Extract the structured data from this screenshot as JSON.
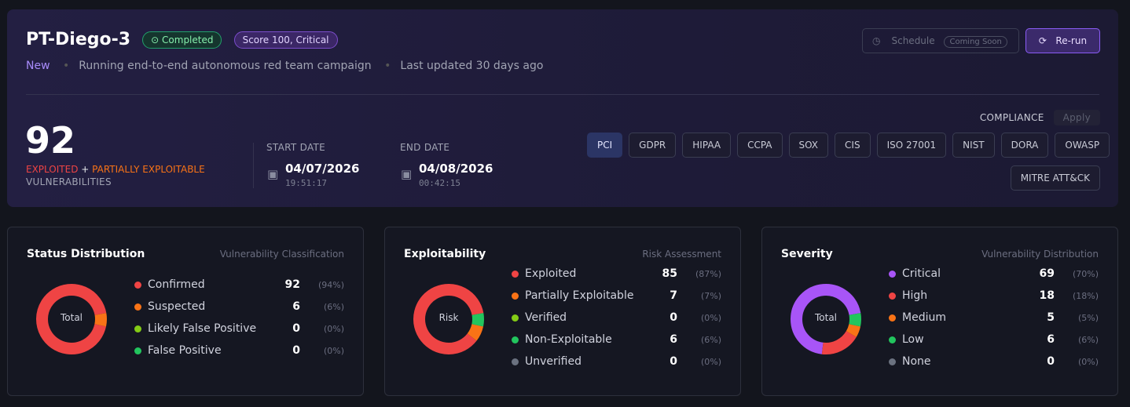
{
  "header": {
    "title": "PT-Diego-3",
    "status": "Completed",
    "score": "Score 100, Critical",
    "tag": "New",
    "description": "Running end-to-end autonomous red team campaign",
    "updated": "Last updated 30 days ago",
    "schedule": "Schedule",
    "schedule_badge": "Coming Soon",
    "rerun": "Re-run"
  },
  "summary": {
    "count": "92",
    "label_exploited": "EXPLOITED",
    "plus": "+",
    "label_partial": "PARTIALLY EXPLOITABLE",
    "label_vuln": "VULNERABILITIES",
    "start_label": "START DATE",
    "start_date": "04/07/2026",
    "start_time": "19:51:17",
    "end_label": "END DATE",
    "end_date": "04/08/2026",
    "end_time": "00:42:15"
  },
  "compliance": {
    "label": "COMPLIANCE",
    "apply": "Apply",
    "frameworks": [
      "PCI",
      "GDPR",
      "HIPAA",
      "CCPA",
      "SOX",
      "CIS",
      "ISO 27001",
      "NIST",
      "DORA",
      "OWASP",
      "MITRE ATT&CK"
    ]
  },
  "panels": [
    {
      "title": "Status Distribution",
      "subtitle": "Vulnerability Classification",
      "center": "Total",
      "items": [
        {
          "name": "Confirmed",
          "color": "#ef4444",
          "value": 92,
          "percent": "(94%)"
        },
        {
          "name": "Suspected",
          "color": "#f97316",
          "value": 6,
          "percent": "(6%)"
        },
        {
          "name": "Likely False Positive",
          "color": "#84cc16",
          "value": 0,
          "percent": "(0%)"
        },
        {
          "name": "False Positive",
          "color": "#22c55e",
          "value": 0,
          "percent": "(0%)"
        }
      ]
    },
    {
      "title": "Exploitability",
      "subtitle": "Risk Assessment",
      "center": "Risk",
      "items": [
        {
          "name": "Exploited",
          "color": "#ef4444",
          "value": 85,
          "percent": "(87%)"
        },
        {
          "name": "Partially Exploitable",
          "color": "#f97316",
          "value": 7,
          "percent": "(7%)"
        },
        {
          "name": "Verified",
          "color": "#84cc16",
          "value": 0,
          "percent": "(0%)"
        },
        {
          "name": "Non-Exploitable",
          "color": "#22c55e",
          "value": 6,
          "percent": "(6%)"
        },
        {
          "name": "Unverified",
          "color": "#6b7280",
          "value": 0,
          "percent": "(0%)"
        }
      ]
    },
    {
      "title": "Severity",
      "subtitle": "Vulnerability Distribution",
      "center": "Total",
      "items": [
        {
          "name": "Critical",
          "color": "#a855f7",
          "value": 69,
          "percent": "(70%)"
        },
        {
          "name": "High",
          "color": "#ef4444",
          "value": 18,
          "percent": "(18%)"
        },
        {
          "name": "Medium",
          "color": "#f97316",
          "value": 5,
          "percent": "(5%)"
        },
        {
          "name": "Low",
          "color": "#22c55e",
          "value": 6,
          "percent": "(6%)"
        },
        {
          "name": "None",
          "color": "#6b7280",
          "value": 0,
          "percent": "(0%)"
        }
      ]
    }
  ]
}
